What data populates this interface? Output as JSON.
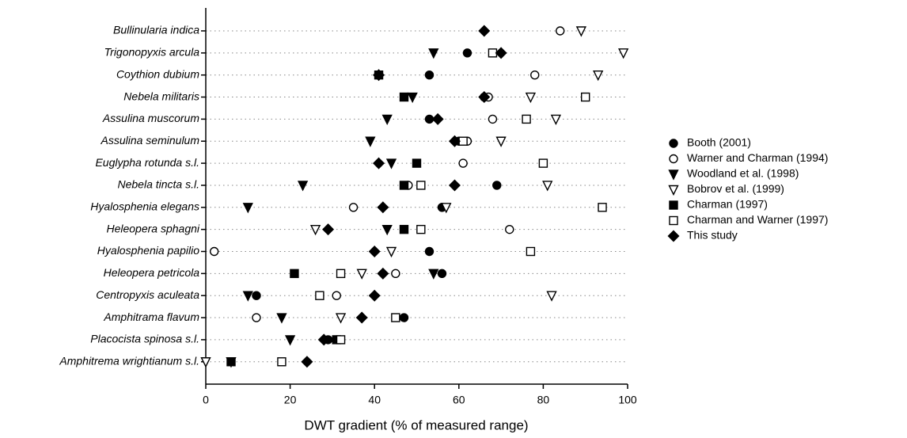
{
  "chart_data": {
    "type": "dot",
    "x_label": "DWT gradient (% of measured range)",
    "categories": [
      "Bullinularia indica",
      "Trigonopyxis arcula",
      "Coythion dubium",
      "Nebela militaris",
      "Assulina muscorum",
      "Assulina seminulum",
      "Euglypha rotunda s.l.",
      "Nebela tincta s.l.",
      "Hyalosphenia elegans",
      "Heleopera sphagni",
      "Hyalosphenia papilio",
      "Heleopera petricola",
      "Centropyxis aculeata",
      "Amphitrama flavum",
      "Placocista spinosa s.l.",
      "Amphitrema wrightianum s.l."
    ],
    "xlim": [
      0,
      100
    ],
    "xticks": [
      0,
      20,
      40,
      60,
      80,
      100
    ],
    "grid": true,
    "series": [
      {
        "name": "Booth (2001)",
        "color": "#000000",
        "marker": "circle",
        "filled": true,
        "values": [
          null,
          62,
          53,
          66,
          53,
          60,
          null,
          69,
          56,
          null,
          53,
          56,
          12,
          47,
          29,
          null
        ]
      },
      {
        "name": "Warner and Charman (1994)",
        "color": "#000000",
        "marker": "circle",
        "filled": false,
        "values": [
          84,
          null,
          78,
          67,
          68,
          62,
          61,
          48,
          35,
          72,
          2,
          45,
          31,
          12,
          null,
          null
        ]
      },
      {
        "name": "Woodland et al. (1998)",
        "color": "#000000",
        "marker": "triangle-down",
        "filled": true,
        "values": [
          null,
          54,
          null,
          49,
          43,
          39,
          44,
          23,
          10,
          43,
          null,
          54,
          10,
          18,
          20,
          6
        ]
      },
      {
        "name": "Bobrov et al. (1999)",
        "color": "#000000",
        "marker": "triangle-down",
        "filled": false,
        "values": [
          89,
          99,
          93,
          77,
          83,
          70,
          null,
          81,
          57,
          26,
          44,
          37,
          82,
          32,
          null,
          0
        ]
      },
      {
        "name": "Charman (1997)",
        "color": "#000000",
        "marker": "square",
        "filled": true,
        "values": [
          null,
          null,
          41,
          47,
          null,
          null,
          50,
          47,
          null,
          47,
          null,
          21,
          null,
          null,
          31,
          6
        ]
      },
      {
        "name": "Charman and Warner (1997)",
        "color": "#000000",
        "marker": "square",
        "filled": false,
        "values": [
          null,
          68,
          null,
          90,
          76,
          61,
          80,
          51,
          94,
          51,
          77,
          32,
          27,
          45,
          32,
          18
        ]
      },
      {
        "name": "This study",
        "color": "#000000",
        "marker": "diamond",
        "filled": true,
        "values": [
          66,
          70,
          41,
          66,
          55,
          59,
          41,
          59,
          42,
          29,
          40,
          42,
          40,
          37,
          28,
          24
        ]
      }
    ]
  }
}
